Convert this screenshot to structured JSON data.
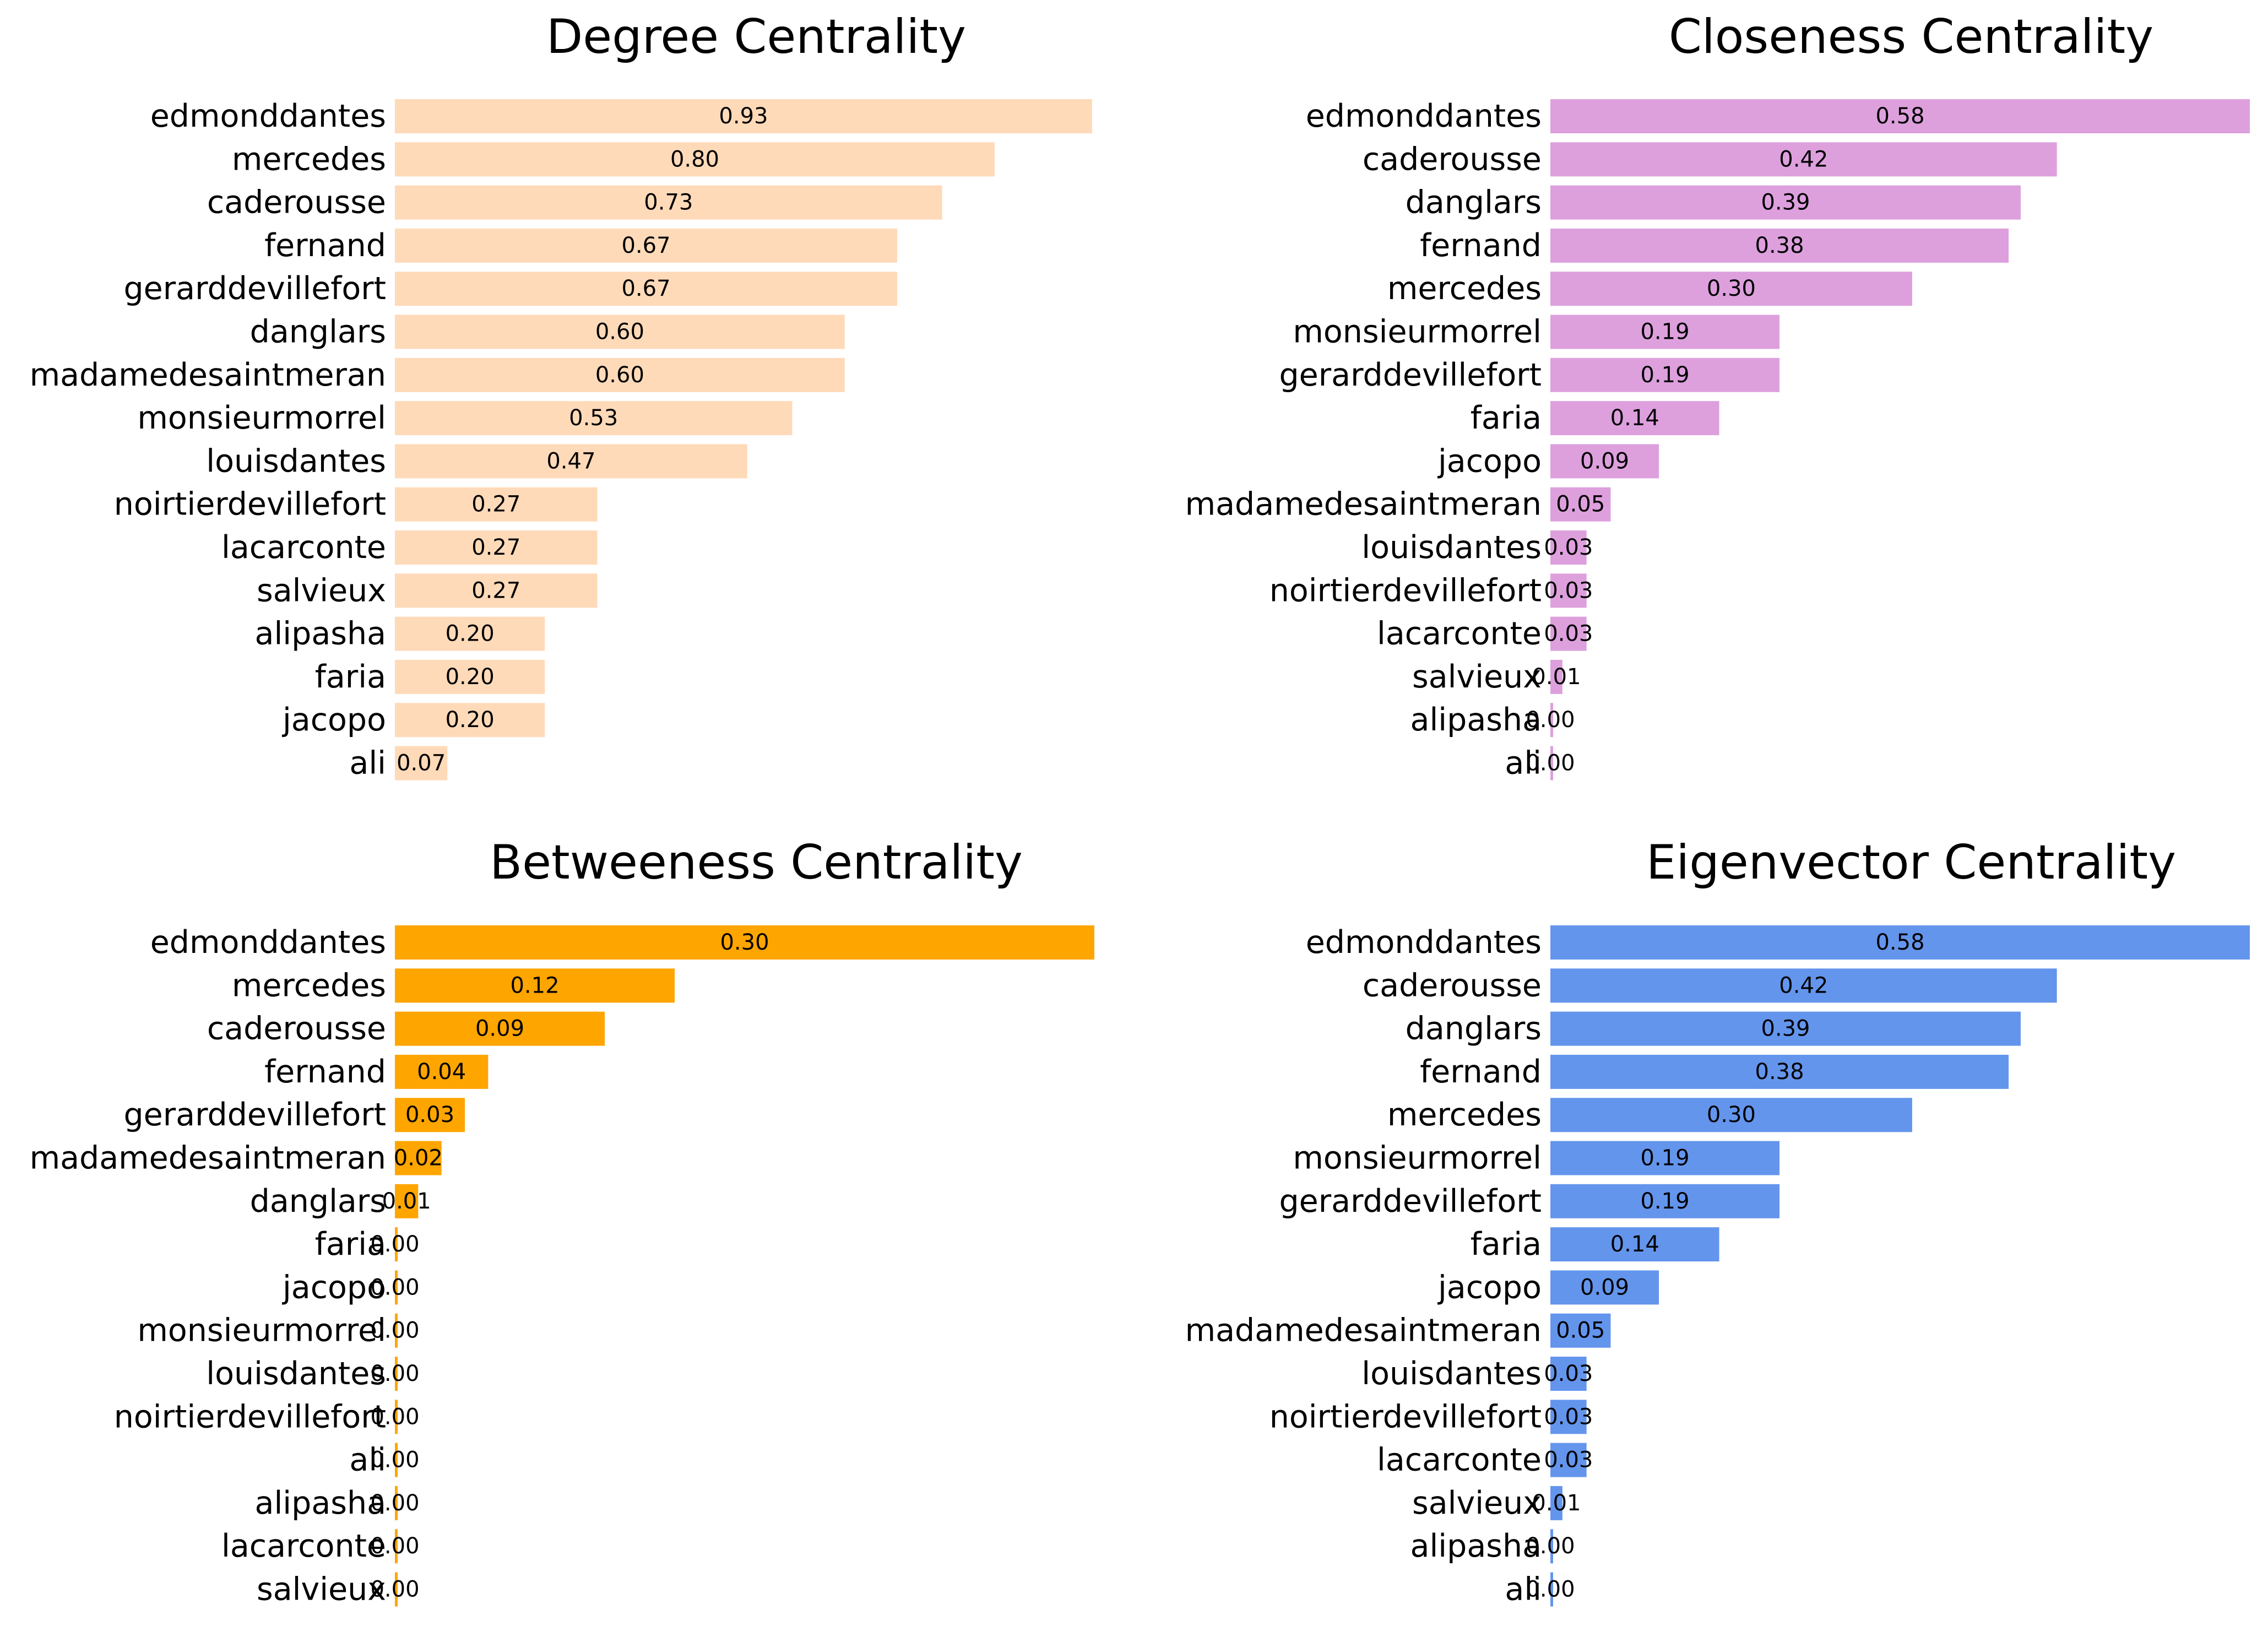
{
  "chart_data": [
    {
      "type": "bar",
      "orientation": "horizontal",
      "title": "Degree Centrality",
      "color": "#ffdab9",
      "categories": [
        "edmonddantes",
        "mercedes",
        "caderousse",
        "fernand",
        "gerarddevillefort",
        "danglars",
        "madamedesaintmeran",
        "monsieurmorrel",
        "louisdantes",
        "noirtierdevillefort",
        "lacarconte",
        "salvieux",
        "alipasha",
        "faria",
        "jacopo",
        "ali"
      ],
      "values": [
        0.93,
        0.8,
        0.73,
        0.67,
        0.67,
        0.6,
        0.6,
        0.53,
        0.47,
        0.27,
        0.27,
        0.27,
        0.2,
        0.2,
        0.2,
        0.07
      ],
      "value_labels": [
        "0.93",
        "0.80",
        "0.73",
        "0.67",
        "0.67",
        "0.60",
        "0.60",
        "0.53",
        "0.47",
        "0.27",
        "0.27",
        "0.27",
        "0.20",
        "0.20",
        "0.20",
        "0.07"
      ],
      "xlim": [
        0,
        0.933
      ],
      "axes_visible": false
    },
    {
      "type": "bar",
      "orientation": "horizontal",
      "title": "Closeness Centrality",
      "color": "#dda0dd",
      "categories": [
        "edmonddantes",
        "caderousse",
        "danglars",
        "fernand",
        "mercedes",
        "monsieurmorrel",
        "gerarddevillefort",
        "faria",
        "jacopo",
        "madamedesaintmeran",
        "louisdantes",
        "noirtierdevillefort",
        "lacarconte",
        "salvieux",
        "alipasha",
        "ali"
      ],
      "values": [
        0.58,
        0.42,
        0.39,
        0.38,
        0.3,
        0.19,
        0.19,
        0.14,
        0.09,
        0.05,
        0.03,
        0.03,
        0.03,
        0.01,
        0.0,
        0.0
      ],
      "value_labels": [
        "0.58",
        "0.42",
        "0.39",
        "0.38",
        "0.30",
        "0.19",
        "0.19",
        "0.14",
        "0.09",
        "0.05",
        "0.03",
        "0.03",
        "0.03",
        "0.01",
        "0.00",
        "0.00"
      ],
      "xlim": [
        0,
        0.58
      ],
      "axes_visible": false
    },
    {
      "type": "bar",
      "orientation": "horizontal",
      "title": "Betweeness Centrality",
      "color": "#ffa500",
      "categories": [
        "edmonddantes",
        "mercedes",
        "caderousse",
        "fernand",
        "gerarddevillefort",
        "madamedesaintmeran",
        "danglars",
        "faria",
        "jacopo",
        "monsieurmorrel",
        "louisdantes",
        "noirtierdevillefort",
        "ali",
        "alipasha",
        "lacarconte",
        "salvieux"
      ],
      "values": [
        0.3,
        0.12,
        0.09,
        0.04,
        0.03,
        0.02,
        0.01,
        0.0,
        0.0,
        0.0,
        0.0,
        0.0,
        0.0,
        0.0,
        0.0,
        0.0
      ],
      "value_labels": [
        "0.30",
        "0.12",
        "0.09",
        "0.04",
        "0.03",
        "0.02",
        "0.01",
        "0.00",
        "0.00",
        "0.00",
        "0.00",
        "0.00",
        "0.00",
        "0.00",
        "0.00",
        "0.00"
      ],
      "xlim": [
        0,
        0.3
      ],
      "axes_visible": false
    },
    {
      "type": "bar",
      "orientation": "horizontal",
      "title": "Eigenvector Centrality",
      "color": "#6495ed",
      "categories": [
        "edmonddantes",
        "caderousse",
        "danglars",
        "fernand",
        "mercedes",
        "monsieurmorrel",
        "gerarddevillefort",
        "faria",
        "jacopo",
        "madamedesaintmeran",
        "louisdantes",
        "noirtierdevillefort",
        "lacarconte",
        "salvieux",
        "alipasha",
        "ali"
      ],
      "values": [
        0.58,
        0.42,
        0.39,
        0.38,
        0.3,
        0.19,
        0.19,
        0.14,
        0.09,
        0.05,
        0.03,
        0.03,
        0.03,
        0.01,
        0.0,
        0.0
      ],
      "value_labels": [
        "0.58",
        "0.42",
        "0.39",
        "0.38",
        "0.30",
        "0.19",
        "0.19",
        "0.14",
        "0.09",
        "0.05",
        "0.03",
        "0.03",
        "0.03",
        "0.01",
        "0.00",
        "0.00"
      ],
      "xlim": [
        0,
        0.58
      ],
      "axes_visible": false
    }
  ]
}
